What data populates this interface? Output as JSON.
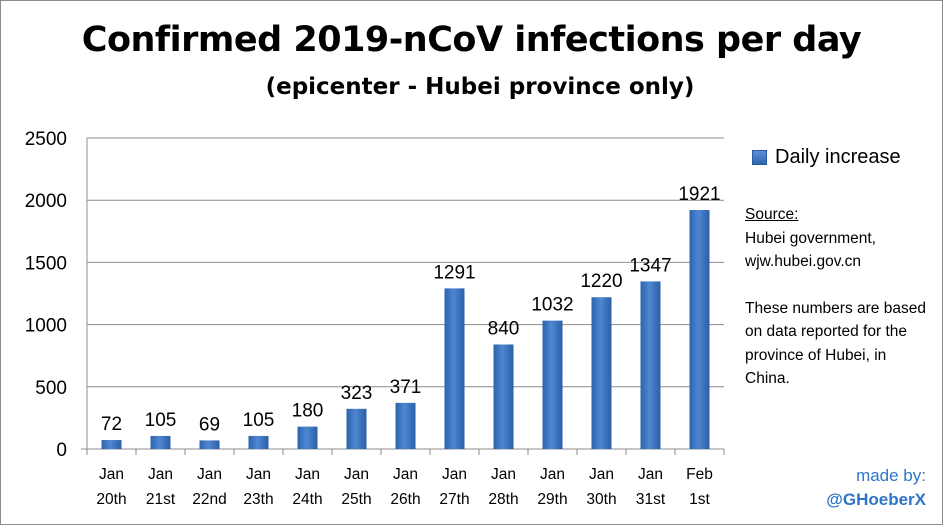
{
  "chart_data": {
    "type": "bar",
    "title": "Confirmed 2019-nCoV infections per day",
    "subtitle": "(epicenter - Hubei province only)",
    "categories": [
      [
        "Jan",
        "20th"
      ],
      [
        "Jan",
        "21st"
      ],
      [
        "Jan",
        "22nd"
      ],
      [
        "Jan",
        "23th"
      ],
      [
        "Jan",
        "24th"
      ],
      [
        "Jan",
        "25th"
      ],
      [
        "Jan",
        "26th"
      ],
      [
        "Jan",
        "27th"
      ],
      [
        "Jan",
        "28th"
      ],
      [
        "Jan",
        "29th"
      ],
      [
        "Jan",
        "30th"
      ],
      [
        "Jan",
        "31st"
      ],
      [
        "Feb",
        "1st"
      ]
    ],
    "series": [
      {
        "name": "Daily increase",
        "values": [
          72,
          105,
          69,
          105,
          180,
          323,
          371,
          1291,
          840,
          1032,
          1220,
          1347,
          1921
        ]
      }
    ],
    "ylim": [
      0,
      2500
    ],
    "yticks": [
      0,
      500,
      1000,
      1500,
      2000,
      2500
    ],
    "grid": true,
    "legend_position": "right",
    "bar_color": "#3a72c0"
  },
  "source": {
    "title": "Source:",
    "lines": [
      "Hubei government,",
      "wjw.hubei.gov.cn"
    ],
    "note": "These numbers are based on data reported for the province of Hubei, in China."
  },
  "credit": {
    "label": "made by:",
    "handle": "@GHoeberX"
  }
}
